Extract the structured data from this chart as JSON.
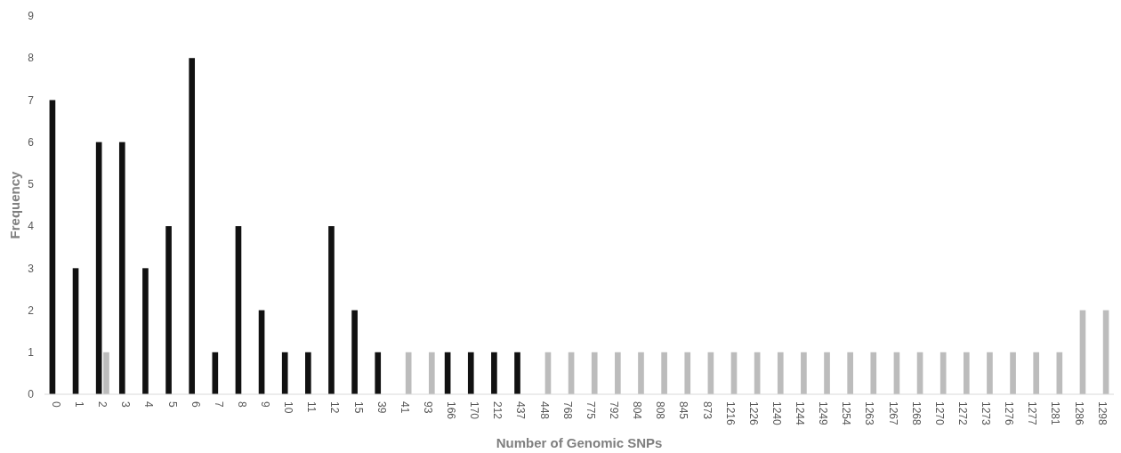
{
  "chart_data": {
    "type": "bar",
    "xlabel": "Number of Genomic SNPs",
    "ylabel": "Frequency",
    "categories": [
      "0",
      "1",
      "2",
      "3",
      "4",
      "5",
      "6",
      "7",
      "8",
      "9",
      "10",
      "11",
      "12",
      "15",
      "39",
      "41",
      "93",
      "166",
      "170",
      "212",
      "437",
      "448",
      "768",
      "775",
      "792",
      "804",
      "808",
      "845",
      "873",
      "1216",
      "1226",
      "1240",
      "1244",
      "1249",
      "1254",
      "1263",
      "1267",
      "1268",
      "1270",
      "1272",
      "1273",
      "1276",
      "1277",
      "1281",
      "1286",
      "1298"
    ],
    "series": [
      {
        "color": "#111111",
        "values": [
          7,
          3,
          6,
          6,
          3,
          4,
          8,
          1,
          4,
          2,
          1,
          1,
          4,
          2,
          1,
          null,
          null,
          1,
          1,
          1,
          1,
          null,
          null,
          null,
          null,
          null,
          null,
          null,
          null,
          null,
          null,
          null,
          null,
          null,
          null,
          null,
          null,
          null,
          null,
          null,
          null,
          null,
          null,
          null,
          null,
          null
        ]
      },
      {
        "color": "#bcbcbc",
        "values": [
          null,
          null,
          1,
          null,
          null,
          null,
          null,
          null,
          null,
          null,
          null,
          null,
          null,
          null,
          null,
          1,
          1,
          null,
          null,
          null,
          null,
          1,
          1,
          1,
          1,
          1,
          1,
          1,
          1,
          1,
          1,
          1,
          1,
          1,
          1,
          1,
          1,
          1,
          1,
          1,
          1,
          1,
          1,
          1,
          2,
          2
        ]
      }
    ],
    "ylim": [
      0,
      9
    ],
    "yticks": [
      0,
      1,
      2,
      3,
      4,
      5,
      6,
      7,
      8,
      9
    ],
    "grid": false
  }
}
